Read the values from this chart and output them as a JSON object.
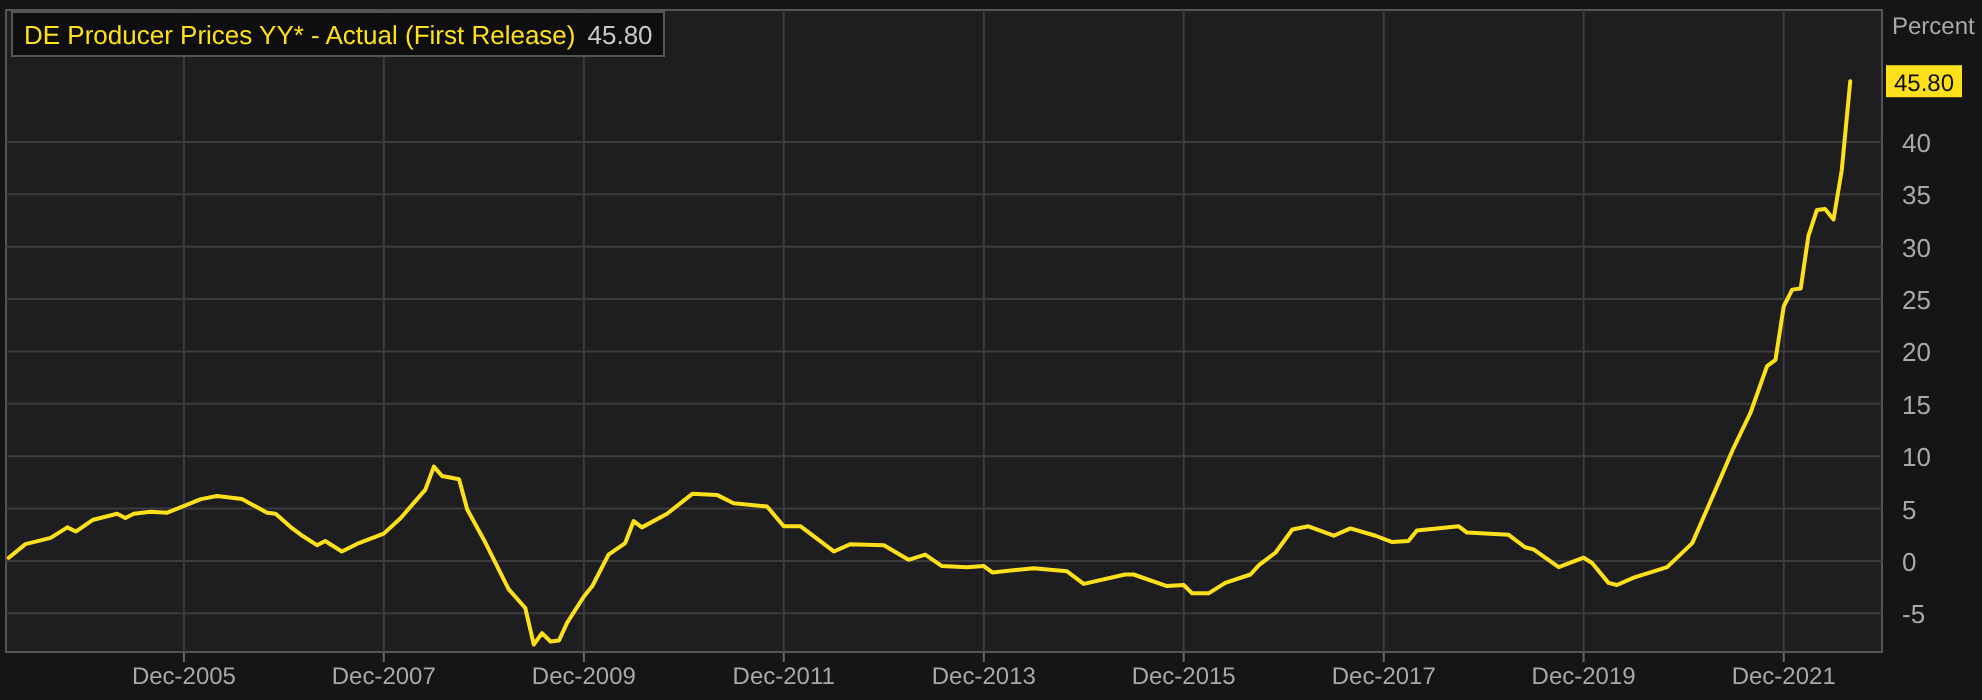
{
  "chart_data": {
    "type": "line",
    "ylabel": "Percent",
    "x": [
      "2004-03",
      "2004-05",
      "2004-08",
      "2004-10",
      "2004-11",
      "2005-01",
      "2005-04",
      "2005-05",
      "2005-06",
      "2005-08",
      "2005-10",
      "2006-02",
      "2006-04",
      "2006-07",
      "2006-10",
      "2006-11",
      "2007-01",
      "2007-02",
      "2007-04",
      "2007-05",
      "2007-07",
      "2007-09",
      "2007-12",
      "2008-02",
      "2008-05",
      "2008-06",
      "2008-07",
      "2008-09",
      "2008-10",
      "2008-12",
      "2009-03",
      "2009-05",
      "2009-06",
      "2009-07",
      "2009-08",
      "2009-09",
      "2009-10",
      "2009-12",
      "2010-01",
      "2010-03",
      "2010-05",
      "2010-06",
      "2010-07",
      "2010-10",
      "2011-01",
      "2011-04",
      "2011-06",
      "2011-10",
      "2011-12",
      "2012-02",
      "2012-06",
      "2012-08",
      "2012-12",
      "2013-03",
      "2013-05",
      "2013-07",
      "2013-10",
      "2013-12",
      "2014-01",
      "2014-06",
      "2014-10",
      "2014-12",
      "2015-05",
      "2015-06",
      "2015-10",
      "2015-12",
      "2016-01",
      "2016-03",
      "2016-05",
      "2016-08",
      "2016-09",
      "2016-11",
      "2017-01",
      "2017-03",
      "2017-06",
      "2017-08",
      "2017-11",
      "2018-01",
      "2018-03",
      "2018-04",
      "2018-09",
      "2018-10",
      "2019-03",
      "2019-05",
      "2019-06",
      "2019-09",
      "2019-12",
      "2020-01",
      "2020-03",
      "2020-04",
      "2020-06",
      "2020-10",
      "2021-01",
      "2021-04",
      "2021-06",
      "2021-08",
      "2021-10",
      "2021-11",
      "2021-12",
      "2022-01",
      "2022-02",
      "2022-03",
      "2022-04",
      "2022-05",
      "2022-06",
      "2022-07",
      "2022-08"
    ],
    "series": [
      {
        "name": "DE Producer Prices YY* - Actual (First Release)",
        "color": "#ffe01b",
        "values": [
          0.3,
          1.6,
          2.2,
          3.2,
          2.8,
          3.9,
          4.5,
          4.1,
          4.5,
          4.7,
          4.6,
          5.9,
          6.2,
          5.9,
          4.6,
          4.5,
          3.1,
          2.5,
          1.5,
          1.9,
          0.9,
          1.7,
          2.6,
          4.1,
          6.8,
          9.0,
          8.1,
          7.8,
          4.9,
          2.0,
          -2.7,
          -4.5,
          -8.0,
          -6.9,
          -7.7,
          -7.6,
          -5.9,
          -3.4,
          -2.4,
          0.6,
          1.7,
          3.8,
          3.2,
          4.5,
          6.4,
          6.3,
          5.5,
          5.2,
          3.3,
          3.3,
          0.9,
          1.6,
          1.5,
          0.1,
          0.6,
          -0.5,
          -0.6,
          -0.5,
          -1.1,
          -0.7,
          -1.0,
          -2.2,
          -1.3,
          -1.3,
          -2.4,
          -2.3,
          -3.1,
          -3.1,
          -2.1,
          -1.3,
          -0.4,
          0.8,
          3.0,
          3.3,
          2.4,
          3.1,
          2.4,
          1.8,
          1.9,
          2.9,
          3.3,
          2.7,
          2.5,
          1.3,
          1.1,
          -0.6,
          0.3,
          -0.2,
          -2.1,
          -2.3,
          -1.6,
          -0.6,
          1.7,
          7.1,
          10.8,
          14.1,
          18.6,
          19.2,
          24.3,
          25.9,
          26.0,
          31.0,
          33.5,
          33.6,
          32.6,
          37.3,
          45.8
        ],
        "value_labels": [
          null,
          null,
          null,
          null,
          null,
          null,
          null,
          null,
          null,
          null,
          null,
          null,
          null,
          null,
          null,
          null,
          null,
          null,
          null,
          null,
          null,
          null,
          null,
          null,
          null,
          null,
          null,
          null,
          null,
          null,
          null,
          null,
          null,
          null,
          null,
          null,
          null,
          null,
          null,
          null,
          null,
          null,
          null,
          null,
          null,
          null,
          null,
          null,
          null,
          null,
          null,
          null,
          null,
          null,
          null,
          null,
          null,
          null,
          null,
          null,
          null,
          null,
          null,
          null,
          null,
          null,
          null,
          null,
          null,
          null,
          null,
          null,
          null,
          null,
          null,
          null,
          null,
          null,
          null,
          null,
          null,
          null,
          null,
          null,
          null,
          null,
          null,
          null,
          null,
          null,
          null,
          null,
          null,
          null,
          null,
          null,
          null,
          null,
          null,
          null,
          null,
          null,
          null,
          null,
          null,
          null,
          "45.80"
        ]
      }
    ],
    "xlim": [
      "2004-02-20",
      "2022-11-25"
    ],
    "xticks": [
      {
        "value": "2005-12-01",
        "label": "Dec-2005"
      },
      {
        "value": "2007-12-01",
        "label": "Dec-2007"
      },
      {
        "value": "2009-12-01",
        "label": "Dec-2009"
      },
      {
        "value": "2011-12-01",
        "label": "Dec-2011"
      },
      {
        "value": "2013-12-01",
        "label": "Dec-2013"
      },
      {
        "value": "2015-12-01",
        "label": "Dec-2015"
      },
      {
        "value": "2017-12-01",
        "label": "Dec-2017"
      },
      {
        "value": "2019-12-01",
        "label": "Dec-2019"
      },
      {
        "value": "2021-12-01",
        "label": "Dec-2021"
      }
    ],
    "ylim": [
      -8.7,
      52.6
    ],
    "yticks": [
      -5,
      0,
      5,
      10,
      15,
      20,
      25,
      30,
      35,
      40
    ],
    "grid": true,
    "legend": "top left"
  }
}
